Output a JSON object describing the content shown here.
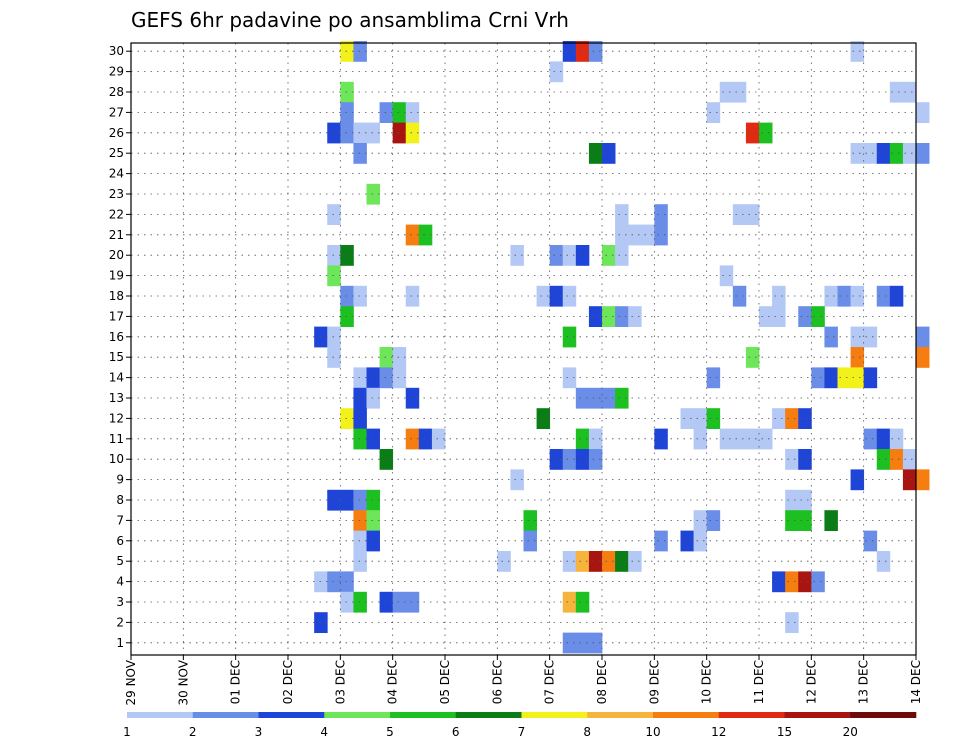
{
  "chart_data": {
    "type": "heatmap",
    "title": "GEFS 6hr padavine po ansamblima Crni Vrh",
    "y_ticks": [
      1,
      2,
      3,
      4,
      5,
      6,
      7,
      8,
      9,
      10,
      11,
      12,
      13,
      14,
      15,
      16,
      17,
      18,
      19,
      20,
      21,
      22,
      23,
      24,
      25,
      26,
      27,
      28,
      29,
      30
    ],
    "x_ticks": [
      "29 NOV",
      "30 NOV",
      "01 DEC",
      "02 DEC",
      "03 DEC",
      "04 DEC",
      "05 DEC",
      "06 DEC",
      "07 DEC",
      "08 DEC",
      "09 DEC",
      "10 DEC",
      "11 DEC",
      "12 DEC",
      "13 DEC",
      "14 DEC"
    ],
    "colorbar": {
      "labels": [
        "1",
        "2",
        "3",
        "4",
        "5",
        "6",
        "7",
        "8",
        "10",
        "12",
        "15",
        "20"
      ],
      "colors": [
        "#b4c8f5",
        "#6a8ee8",
        "#1f44d8",
        "#6ee65a",
        "#1cc020",
        "#0b7d16",
        "#f2f21a",
        "#f7b43c",
        "#f67d10",
        "#e02b12",
        "#a81510",
        "#6e0a08"
      ]
    },
    "grid": true,
    "cells": [
      {
        "m": 30,
        "c": [
          [
            16,
            7
          ],
          [
            17,
            2
          ],
          [
            33,
            3
          ],
          [
            34,
            10
          ],
          [
            35,
            2
          ],
          [
            55,
            1
          ]
        ]
      },
      {
        "m": 29,
        "c": [
          [
            32,
            1
          ]
        ]
      },
      {
        "m": 28,
        "c": [
          [
            16,
            4
          ],
          [
            45,
            1
          ],
          [
            46,
            1
          ],
          [
            58,
            1
          ],
          [
            59,
            1
          ]
        ]
      },
      {
        "m": 27,
        "c": [
          [
            16,
            2
          ],
          [
            19,
            2
          ],
          [
            20,
            5
          ],
          [
            21,
            1
          ],
          [
            44,
            1
          ],
          [
            60,
            1
          ]
        ]
      },
      {
        "m": 26,
        "c": [
          [
            15,
            3
          ],
          [
            16,
            2
          ],
          [
            17,
            1
          ],
          [
            18,
            1
          ],
          [
            20,
            11
          ],
          [
            21,
            7
          ],
          [
            47,
            10
          ],
          [
            48,
            5
          ]
        ]
      },
      {
        "m": 25,
        "c": [
          [
            17,
            2
          ],
          [
            35,
            6
          ],
          [
            36,
            3
          ],
          [
            55,
            1
          ],
          [
            56,
            1
          ],
          [
            57,
            3
          ],
          [
            58,
            5
          ],
          [
            59,
            1
          ],
          [
            60,
            2
          ]
        ]
      },
      {
        "m": 23,
        "c": [
          [
            18,
            4
          ]
        ]
      },
      {
        "m": 22,
        "c": [
          [
            15,
            1
          ],
          [
            37,
            1
          ],
          [
            40,
            2
          ],
          [
            46,
            1
          ],
          [
            47,
            1
          ]
        ]
      },
      {
        "m": 21,
        "c": [
          [
            21,
            9
          ],
          [
            22,
            5
          ],
          [
            37,
            1
          ],
          [
            38,
            1
          ],
          [
            39,
            1
          ],
          [
            40,
            2
          ]
        ]
      },
      {
        "m": 20,
        "c": [
          [
            15,
            1
          ],
          [
            16,
            6
          ],
          [
            29,
            1
          ],
          [
            32,
            2
          ],
          [
            33,
            1
          ],
          [
            34,
            3
          ],
          [
            36,
            4
          ],
          [
            37,
            1
          ]
        ]
      },
      {
        "m": 19,
        "c": [
          [
            15,
            4
          ],
          [
            45,
            1
          ]
        ]
      },
      {
        "m": 18,
        "c": [
          [
            16,
            2
          ],
          [
            17,
            1
          ],
          [
            21,
            1
          ],
          [
            31,
            1
          ],
          [
            32,
            3
          ],
          [
            33,
            1
          ],
          [
            46,
            2
          ],
          [
            49,
            1
          ],
          [
            53,
            1
          ],
          [
            54,
            2
          ],
          [
            55,
            1
          ],
          [
            57,
            2
          ],
          [
            58,
            3
          ]
        ]
      },
      {
        "m": 17,
        "c": [
          [
            16,
            5
          ],
          [
            35,
            3
          ],
          [
            36,
            4
          ],
          [
            37,
            2
          ],
          [
            38,
            1
          ],
          [
            48,
            1
          ],
          [
            49,
            1
          ],
          [
            51,
            2
          ],
          [
            52,
            5
          ]
        ]
      },
      {
        "m": 16,
        "c": [
          [
            14,
            3
          ],
          [
            15,
            1
          ],
          [
            33,
            5
          ],
          [
            53,
            2
          ],
          [
            55,
            1
          ],
          [
            56,
            1
          ],
          [
            60,
            2
          ]
        ]
      },
      {
        "m": 15,
        "c": [
          [
            15,
            1
          ],
          [
            19,
            4
          ],
          [
            20,
            1
          ],
          [
            47,
            4
          ],
          [
            55,
            9
          ],
          [
            60,
            9
          ]
        ]
      },
      {
        "m": 14,
        "c": [
          [
            17,
            1
          ],
          [
            18,
            3
          ],
          [
            19,
            2
          ],
          [
            20,
            1
          ],
          [
            33,
            1
          ],
          [
            44,
            2
          ],
          [
            52,
            2
          ],
          [
            53,
            3
          ],
          [
            54,
            7
          ],
          [
            55,
            7
          ],
          [
            56,
            3
          ]
        ]
      },
      {
        "m": 13,
        "c": [
          [
            17,
            3
          ],
          [
            18,
            1
          ],
          [
            21,
            3
          ],
          [
            34,
            2
          ],
          [
            35,
            2
          ],
          [
            36,
            2
          ],
          [
            37,
            5
          ]
        ]
      },
      {
        "m": 12,
        "c": [
          [
            16,
            7
          ],
          [
            17,
            3
          ],
          [
            31,
            6
          ],
          [
            42,
            1
          ],
          [
            43,
            1
          ],
          [
            44,
            5
          ],
          [
            49,
            1
          ],
          [
            50,
            9
          ],
          [
            51,
            3
          ]
        ]
      },
      {
        "m": 11,
        "c": [
          [
            17,
            5
          ],
          [
            18,
            3
          ],
          [
            21,
            9
          ],
          [
            22,
            3
          ],
          [
            23,
            1
          ],
          [
            34,
            5
          ],
          [
            35,
            1
          ],
          [
            40,
            3
          ],
          [
            43,
            1
          ],
          [
            45,
            1
          ],
          [
            46,
            1
          ],
          [
            47,
            1
          ],
          [
            48,
            1
          ],
          [
            56,
            2
          ],
          [
            57,
            3
          ],
          [
            58,
            1
          ]
        ]
      },
      {
        "m": 10,
        "c": [
          [
            19,
            6
          ],
          [
            32,
            3
          ],
          [
            33,
            2
          ],
          [
            34,
            3
          ],
          [
            35,
            2
          ],
          [
            50,
            1
          ],
          [
            51,
            3
          ],
          [
            57,
            5
          ],
          [
            58,
            9
          ],
          [
            59,
            1
          ]
        ]
      },
      {
        "m": 9,
        "c": [
          [
            29,
            1
          ],
          [
            55,
            3
          ],
          [
            59,
            11
          ],
          [
            60,
            9
          ]
        ]
      },
      {
        "m": 8,
        "c": [
          [
            15,
            3
          ],
          [
            16,
            3
          ],
          [
            17,
            2
          ],
          [
            18,
            5
          ],
          [
            50,
            1
          ],
          [
            51,
            1
          ]
        ]
      },
      {
        "m": 7,
        "c": [
          [
            17,
            9
          ],
          [
            18,
            4
          ],
          [
            30,
            5
          ],
          [
            43,
            1
          ],
          [
            44,
            2
          ],
          [
            50,
            5
          ],
          [
            51,
            5
          ],
          [
            53,
            6
          ]
        ]
      },
      {
        "m": 6,
        "c": [
          [
            17,
            1
          ],
          [
            18,
            3
          ],
          [
            30,
            2
          ],
          [
            40,
            2
          ],
          [
            42,
            3
          ],
          [
            43,
            1
          ],
          [
            56,
            2
          ]
        ]
      },
      {
        "m": 5,
        "c": [
          [
            17,
            1
          ],
          [
            28,
            1
          ],
          [
            33,
            1
          ],
          [
            34,
            8
          ],
          [
            35,
            11
          ],
          [
            36,
            9
          ],
          [
            37,
            6
          ],
          [
            38,
            1
          ],
          [
            57,
            1
          ]
        ]
      },
      {
        "m": 4,
        "c": [
          [
            14,
            1
          ],
          [
            15,
            2
          ],
          [
            16,
            2
          ],
          [
            49,
            3
          ],
          [
            50,
            9
          ],
          [
            51,
            11
          ],
          [
            52,
            2
          ]
        ]
      },
      {
        "m": 3,
        "c": [
          [
            16,
            1
          ],
          [
            17,
            5
          ],
          [
            19,
            3
          ],
          [
            20,
            2
          ],
          [
            21,
            2
          ],
          [
            33,
            8
          ],
          [
            34,
            5
          ]
        ]
      },
      {
        "m": 2,
        "c": [
          [
            14,
            3
          ],
          [
            50,
            1
          ]
        ]
      },
      {
        "m": 1,
        "c": [
          [
            33,
            2
          ],
          [
            34,
            2
          ],
          [
            35,
            2
          ]
        ]
      }
    ]
  }
}
